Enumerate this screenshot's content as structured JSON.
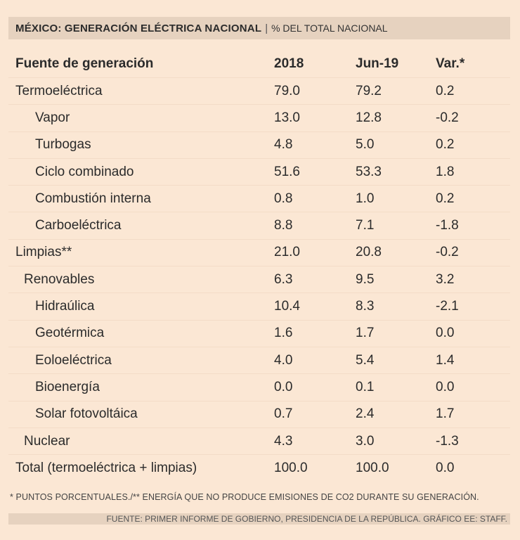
{
  "header": {
    "title": "MÉXICO: GENERACIÓN ELÉCTRICA NACIONAL",
    "separator": "|",
    "subtitle": "% DEL TOTAL NACIONAL"
  },
  "table": {
    "columns": [
      "Fuente de generación",
      "2018",
      "Jun-19",
      "Var.*"
    ],
    "rows": [
      {
        "name": "Termoeléctrica",
        "y2018": "79.0",
        "jun19": "79.2",
        "var": "0.2"
      },
      {
        "name": "Vapor",
        "y2018": "13.0",
        "jun19": "12.8",
        "var": "-0.2"
      },
      {
        "name": "Turbogas",
        "y2018": "4.8",
        "jun19": "5.0",
        "var": "0.2"
      },
      {
        "name": "Ciclo combinado",
        "y2018": "51.6",
        "jun19": "53.3",
        "var": "1.8"
      },
      {
        "name": "Combustión interna",
        "y2018": "0.8",
        "jun19": "1.0",
        "var": "0.2"
      },
      {
        "name": "Carboeléctrica",
        "y2018": "8.8",
        "jun19": "7.1",
        "var": "-1.8"
      },
      {
        "name": "Limpias**",
        "y2018": "21.0",
        "jun19": "20.8",
        "var": "-0.2"
      },
      {
        "name": "Renovables",
        "y2018": "6.3",
        "jun19": "9.5",
        "var": "3.2"
      },
      {
        "name": "Hidraúlica",
        "y2018": "10.4",
        "jun19": "8.3",
        "var": "-2.1"
      },
      {
        "name": "Geotérmica",
        "y2018": "1.6",
        "jun19": "1.7",
        "var": "0.0"
      },
      {
        "name": "Eoloeléctrica",
        "y2018": "4.0",
        "jun19": "5.4",
        "var": "1.4"
      },
      {
        "name": "Bioenergía",
        "y2018": "0.0",
        "jun19": "0.1",
        "var": "0.0"
      },
      {
        "name": "Solar fotovoltáica",
        "y2018": "0.7",
        "jun19": "2.4",
        "var": "1.7"
      },
      {
        "name": "Nuclear",
        "y2018": "4.3",
        "jun19": "3.0",
        "var": "-1.3"
      },
      {
        "name": "Total (termoeléctrica + limpias)",
        "y2018": "100.0",
        "jun19": "100.0",
        "var": "0.0"
      }
    ]
  },
  "footnote": "* PUNTOS PORCENTUALES./** ENERGÍA QUE NO PRODUCE EMISIONES DE CO2 DURANTE SU GENERACIÓN.",
  "source": "FUENTE: PRIMER INFORME DE GOBIERNO, PRESIDENCIA DE LA REPÚBLICA. GRÁFICO EE: STAFF."
}
